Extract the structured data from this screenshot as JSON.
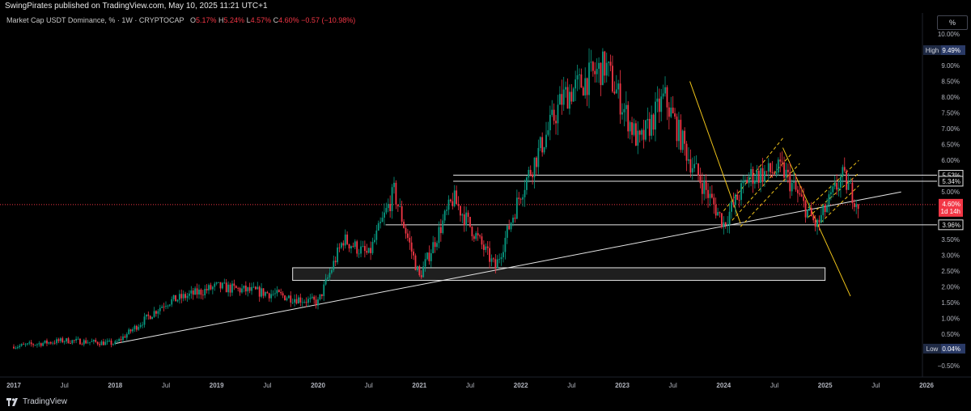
{
  "header": {
    "published": "SwingPirates published on TradingView.com, May 10, 2025 11:21 UTC+1"
  },
  "legend": {
    "symbol": "Market Cap USDT Dominance, % · 1W · CRYPTOCAP",
    "o_label": "O",
    "o_value": "5.17%",
    "h_label": "H",
    "h_value": "5.24%",
    "l_label": "L",
    "l_value": "4.57%",
    "c_label": "C",
    "c_value": "4.60%",
    "change": "−0.57 (−10.98%)"
  },
  "scale_button": "%",
  "footer": {
    "brand": "TradingView"
  },
  "colors": {
    "up": "#089981",
    "down": "#f23645",
    "support": "#e6e6e6",
    "channel": "#f0c419",
    "background": "#000000"
  },
  "chart_data": {
    "type": "candlestick",
    "ylim": [
      -0.5,
      10.0
    ],
    "x_ticks": [
      "2017",
      "Jul",
      "2018",
      "Jul",
      "2019",
      "Jul",
      "2020",
      "Jul",
      "2021",
      "Jul",
      "2022",
      "Jul",
      "2023",
      "Jul",
      "2024",
      "Jul",
      "2025",
      "Jul",
      "2026"
    ],
    "y_ticks": [
      "10.00%",
      "9.50%",
      "9.00%",
      "8.50%",
      "8.00%",
      "7.50%",
      "7.00%",
      "6.50%",
      "6.00%",
      "5.50%",
      "5.00%",
      "4.50%",
      "4.00%",
      "3.50%",
      "3.00%",
      "2.50%",
      "2.00%",
      "1.50%",
      "1.00%",
      "0.50%",
      "0.00%",
      "−0.50%"
    ],
    "y_tick_values": [
      10,
      9.5,
      9,
      8.5,
      8,
      7.5,
      7,
      6.5,
      6,
      5.5,
      5,
      4.5,
      4,
      3.5,
      3,
      2.5,
      2,
      1.5,
      1,
      0.5,
      0,
      -0.5
    ],
    "price_labels": [
      {
        "text": "High",
        "value": "9.49%",
        "y": 9.49,
        "type": "high"
      },
      {
        "text": "",
        "value": "5.53%",
        "y": 5.53,
        "type": "level"
      },
      {
        "text": "",
        "value": "5.34%",
        "y": 5.34,
        "type": "level"
      },
      {
        "text": "",
        "value": "4.60%",
        "y": 4.6,
        "type": "current",
        "sub": "1d 14h"
      },
      {
        "text": "",
        "value": "3.96%",
        "y": 3.96,
        "type": "level"
      },
      {
        "text": "Low",
        "value": "0.04%",
        "y": 0.04,
        "type": "low"
      }
    ],
    "series": [
      {
        "date": "2017-01",
        "value": 0.1
      },
      {
        "date": "2017-07",
        "value": 0.3
      },
      {
        "date": "2018-01",
        "value": 0.2
      },
      {
        "date": "2018-07",
        "value": 1.5
      },
      {
        "date": "2019-01",
        "value": 2.0
      },
      {
        "date": "2019-07",
        "value": 1.8
      },
      {
        "date": "2020-01",
        "value": 1.5
      },
      {
        "date": "2020-04",
        "value": 3.5
      },
      {
        "date": "2020-07",
        "value": 3.0
      },
      {
        "date": "2020-10",
        "value": 5.0
      },
      {
        "date": "2021-01",
        "value": 2.3
      },
      {
        "date": "2021-05",
        "value": 4.8
      },
      {
        "date": "2021-10",
        "value": 2.6
      },
      {
        "date": "2022-01",
        "value": 5.0
      },
      {
        "date": "2022-06",
        "value": 8.0
      },
      {
        "date": "2022-11",
        "value": 9.0
      },
      {
        "date": "2023-03",
        "value": 6.5
      },
      {
        "date": "2023-06",
        "value": 8.0
      },
      {
        "date": "2023-09",
        "value": 6.0
      },
      {
        "date": "2024-01",
        "value": 4.0
      },
      {
        "date": "2024-04",
        "value": 5.5
      },
      {
        "date": "2024-08",
        "value": 5.7
      },
      {
        "date": "2024-12",
        "value": 3.9
      },
      {
        "date": "2025-03",
        "value": 5.5
      },
      {
        "date": "2025-05",
        "value": 4.6
      }
    ],
    "annotations": {
      "support_line": {
        "from": [
          "2018-01",
          0.2
        ],
        "to": [
          "2025-10",
          5.0
        ]
      },
      "horizontal_levels": [
        5.53,
        5.34,
        3.96
      ],
      "zone": {
        "from": "2019-10",
        "to": "2025-01",
        "y": [
          2.2,
          2.6
        ]
      }
    }
  }
}
